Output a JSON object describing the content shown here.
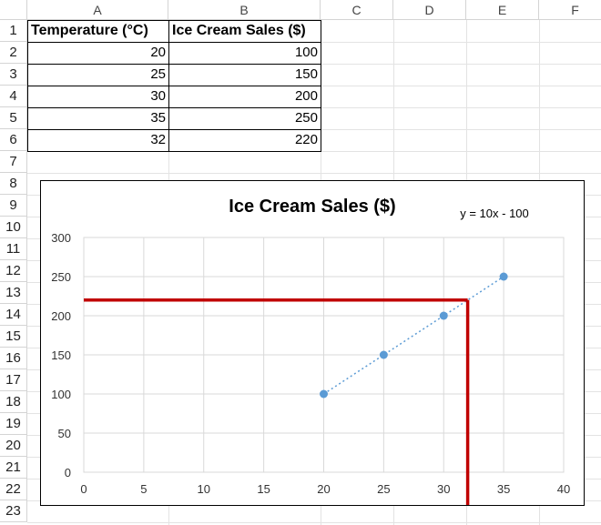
{
  "columns": [
    "A",
    "B",
    "C",
    "D",
    "E",
    "F"
  ],
  "rows": [
    "1",
    "2",
    "3",
    "4",
    "5",
    "6",
    "7",
    "8",
    "9",
    "10",
    "11",
    "12",
    "13",
    "14",
    "15",
    "16",
    "17",
    "18",
    "19",
    "20",
    "21",
    "22",
    "23"
  ],
  "table": {
    "headers": [
      "Temperature (°C)",
      "Ice Cream Sales ($)"
    ],
    "rows": [
      [
        "20",
        "100"
      ],
      [
        "25",
        "150"
      ],
      [
        "30",
        "200"
      ],
      [
        "35",
        "250"
      ],
      [
        "32",
        "220"
      ]
    ]
  },
  "chart_data": {
    "type": "scatter",
    "title": "Ice Cream Sales ($)",
    "trendline_label": "y = 10x - 100",
    "xlim": [
      0,
      40
    ],
    "ylim": [
      0,
      300
    ],
    "x_ticks": [
      "0",
      "5",
      "10",
      "15",
      "20",
      "25",
      "30",
      "35",
      "40"
    ],
    "y_ticks": [
      "0",
      "50",
      "100",
      "150",
      "200",
      "250",
      "300"
    ],
    "x": [
      20,
      25,
      30,
      35
    ],
    "y": [
      100,
      150,
      200,
      250
    ],
    "trendline": {
      "slope": 10,
      "intercept": -100,
      "x_range": [
        20,
        35
      ]
    },
    "marker_lookup": {
      "x": 32,
      "y": 220
    },
    "grid": true,
    "point_color": "#5b9bd5",
    "trend_color": "#5b9bd5",
    "lookup_color": "#c00000"
  }
}
